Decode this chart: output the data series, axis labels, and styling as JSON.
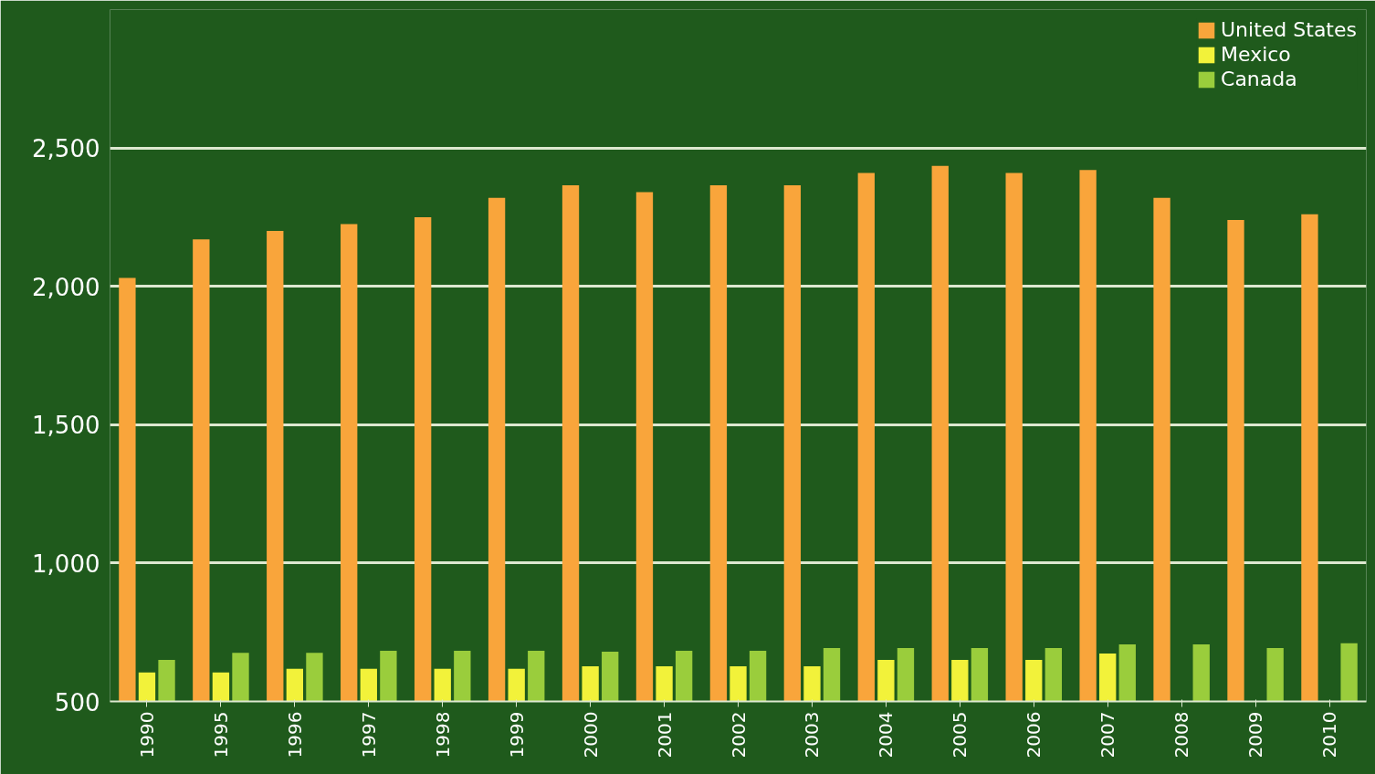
{
  "chart_data": {
    "type": "bar",
    "categories": [
      "1990",
      "1995",
      "1996",
      "1997",
      "1998",
      "1999",
      "2000",
      "2001",
      "2002",
      "2003",
      "2004",
      "2005",
      "2006",
      "2007",
      "2008",
      "2009",
      "2010"
    ],
    "series": [
      {
        "name": "United States",
        "color": "#f9a53b",
        "values": [
          2030,
          2170,
          2200,
          2225,
          2250,
          2320,
          2365,
          2340,
          2365,
          2365,
          2410,
          2435,
          2410,
          2420,
          2320,
          2240,
          2260
        ]
      },
      {
        "name": "Mexico",
        "color": "#f2f23a",
        "values": [
          605,
          605,
          618,
          618,
          618,
          618,
          627,
          627,
          627,
          627,
          650,
          650,
          650,
          673,
          null,
          null,
          null
        ]
      },
      {
        "name": "Canada",
        "color": "#9acd3c",
        "values": [
          650,
          676,
          676,
          683,
          683,
          683,
          680,
          683,
          683,
          693,
          693,
          693,
          693,
          706,
          706,
          693,
          710
        ]
      }
    ],
    "ylim": [
      500,
      3000
    ],
    "yticks": [
      500,
      {
        "value": 1000,
        "label": "1,000"
      },
      {
        "value": 1500,
        "label": "1,500"
      },
      {
        "value": 2000,
        "label": "2,000"
      },
      {
        "value": 2500,
        "label": "2,500"
      },
      {
        "value": 3000,
        "label": null
      }
    ],
    "grid": "y",
    "legend": "top right"
  }
}
